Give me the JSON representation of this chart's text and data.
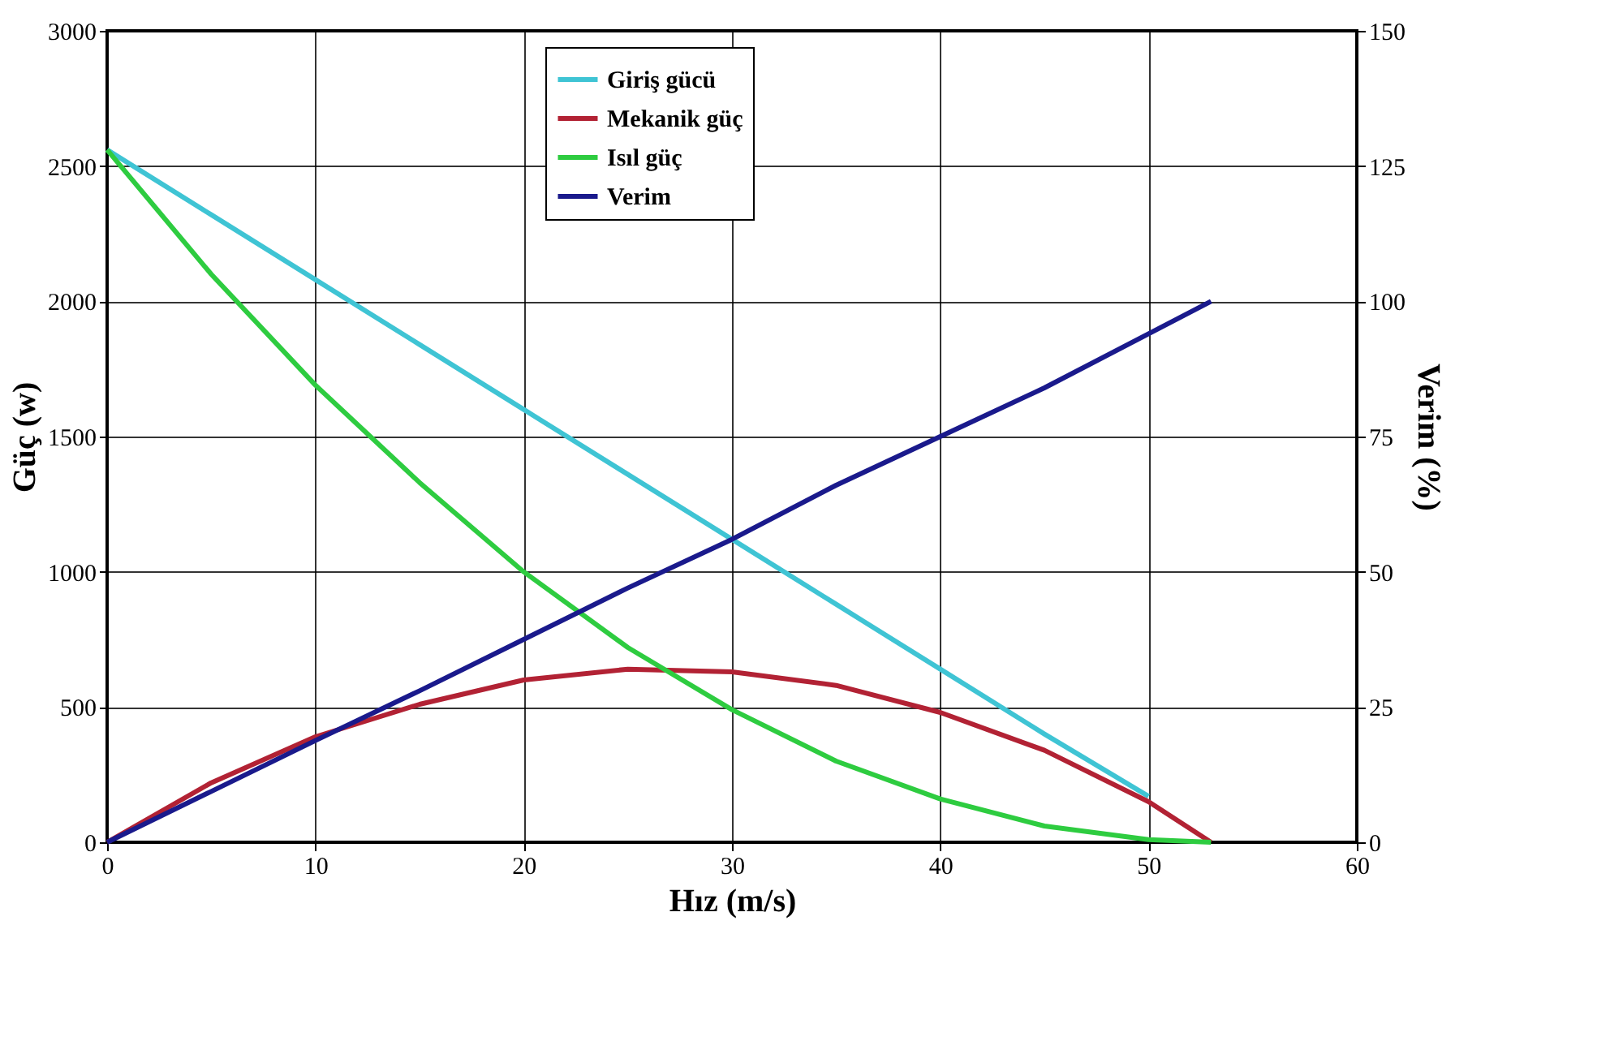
{
  "chart_data": {
    "type": "line",
    "xlabel": "Hız (m/s)",
    "ylabel": "Güç (w)",
    "y2label": "Verim (%)",
    "xlim": [
      0,
      60
    ],
    "xticks": [
      0,
      10,
      20,
      30,
      40,
      50,
      60
    ],
    "ylim": [
      0,
      3000
    ],
    "yticks": [
      0,
      500,
      1000,
      1500,
      2000,
      2500,
      3000
    ],
    "y2lim": [
      0,
      150
    ],
    "y2ticks": [
      0,
      25,
      50,
      75,
      100,
      125,
      150
    ],
    "grid": true,
    "legend": "top",
    "marker": "none",
    "line_style": "solid",
    "series": [
      {
        "name": "Giriş gücü",
        "color": "#3fc4d4",
        "x": [
          0,
          5,
          10,
          15,
          20,
          25,
          30,
          35,
          40,
          45,
          50
        ],
        "values": [
          2560,
          2320,
          2080,
          1840,
          1600,
          1360,
          1120,
          880,
          640,
          400,
          170
        ]
      },
      {
        "name": "Mekanik güç",
        "color": "#b22234",
        "x": [
          0,
          5,
          10,
          15,
          20,
          25,
          30,
          35,
          40,
          45,
          50,
          53
        ],
        "values": [
          0,
          220,
          390,
          510,
          600,
          640,
          630,
          580,
          480,
          340,
          150,
          0
        ]
      },
      {
        "name": "Isıl güç",
        "color": "#2ecc40",
        "x": [
          0,
          5,
          10,
          15,
          20,
          25,
          30,
          35,
          40,
          45,
          50,
          53
        ],
        "values": [
          2560,
          2100,
          1690,
          1330,
          1000,
          720,
          490,
          300,
          160,
          60,
          10,
          0
        ]
      },
      {
        "name": "Verim",
        "color": "#1a1a8c",
        "axis": "y2",
        "x": [
          0,
          5,
          10,
          15,
          20,
          25,
          30,
          35,
          40,
          45,
          50,
          53
        ],
        "values": [
          0,
          9.4,
          18.8,
          28,
          37.5,
          47,
          56,
          66,
          75,
          84,
          94,
          100
        ]
      }
    ]
  }
}
